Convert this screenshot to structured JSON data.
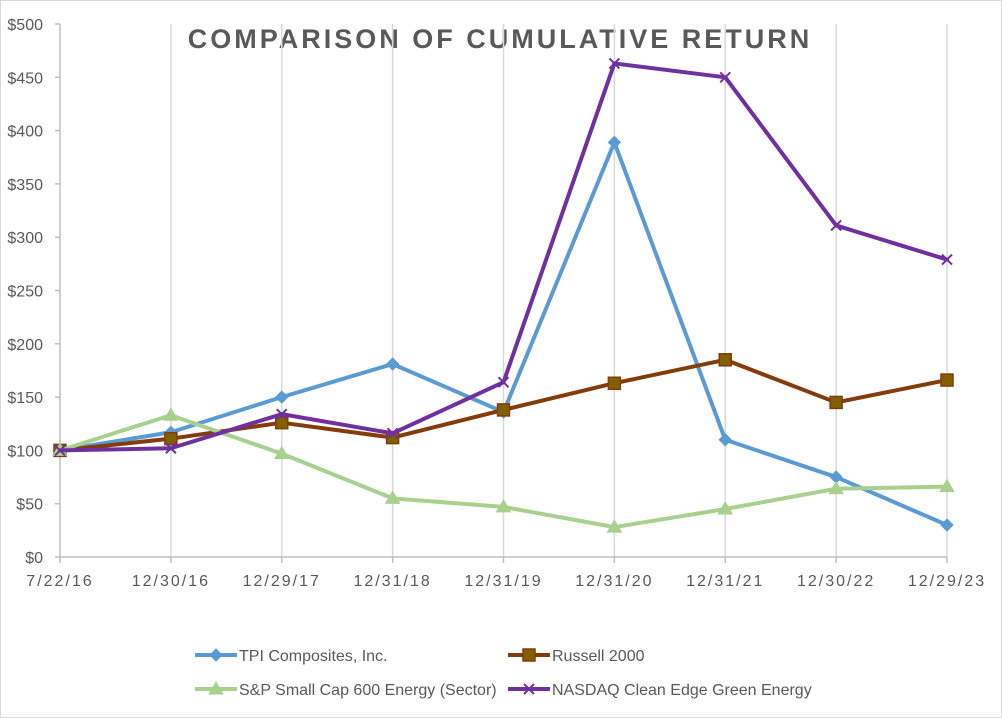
{
  "chart_data": {
    "type": "line",
    "title": "COMPARISON OF CUMULATIVE RETURN",
    "xlabel": "",
    "ylabel": "",
    "categories": [
      "7/22/16",
      "12/30/16",
      "12/29/17",
      "12/31/18",
      "12/31/19",
      "12/31/20",
      "12/31/21",
      "12/30/22",
      "12/29/23"
    ],
    "ylim": [
      0,
      500
    ],
    "yticks": [
      0,
      50,
      100,
      150,
      200,
      250,
      300,
      350,
      400,
      450,
      500
    ],
    "ytick_labels": [
      "$0",
      "$50",
      "$100",
      "$150",
      "$200",
      "$250",
      "$300",
      "$350",
      "$400",
      "$450",
      "$500"
    ],
    "grid": "vertical",
    "legend_position": "bottom",
    "series": [
      {
        "name": "TPI Composites, Inc.",
        "color": "#5b9bd5",
        "marker": "diamond",
        "values": [
          100,
          117,
          150,
          181,
          136,
          389,
          110,
          75,
          30
        ]
      },
      {
        "name": "Russell 2000",
        "color": "#843c0c",
        "marker": "square",
        "marker_fill": "#806000",
        "values": [
          100,
          111,
          126,
          112,
          138,
          163,
          185,
          145,
          166
        ]
      },
      {
        "name": "S&P Small Cap 600 Energy (Sector)",
        "color": "#a9d18e",
        "marker": "triangle",
        "values": [
          100,
          133,
          97,
          55,
          47,
          28,
          45,
          64,
          66
        ]
      },
      {
        "name": "NASDAQ Clean Edge Green Energy",
        "color": "#7030a0",
        "marker": "x",
        "values": [
          100,
          102,
          134,
          116,
          164,
          463,
          450,
          311,
          279
        ]
      }
    ]
  }
}
